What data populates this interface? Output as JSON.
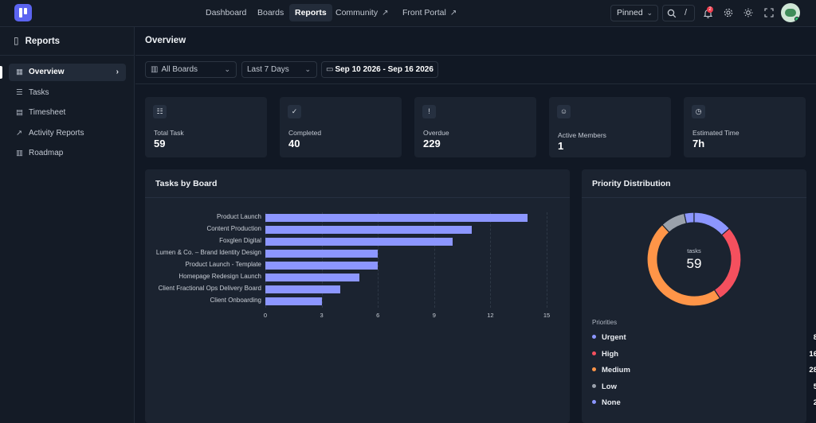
{
  "nav": {
    "items": [
      {
        "label": "Dashboard",
        "external": false,
        "active": false
      },
      {
        "label": "Boards",
        "external": false,
        "active": false
      },
      {
        "label": "Reports",
        "external": false,
        "active": true
      },
      {
        "label": "Community",
        "external": true,
        "active": false
      },
      {
        "label": "Front Portal",
        "external": true,
        "active": false
      }
    ],
    "pinned_label": "Pinned",
    "search_shortcut": "/",
    "notification_count": "2"
  },
  "sidebar": {
    "title": "Reports",
    "items": [
      {
        "label": "Overview",
        "icon": "grid-icon",
        "active": true
      },
      {
        "label": "Tasks",
        "icon": "list-check-icon",
        "active": false
      },
      {
        "label": "Timesheet",
        "icon": "timesheet-icon",
        "active": false
      },
      {
        "label": "Activity Reports",
        "icon": "chart-line-icon",
        "active": false
      },
      {
        "label": "Roadmap",
        "icon": "map-icon",
        "active": false
      }
    ]
  },
  "main": {
    "title": "Overview",
    "filters": {
      "boards": "All Boards",
      "range": "Last 7 Days",
      "date_from": "Sep 10 2026",
      "date_sep": "-",
      "date_to": "Sep 16 2026"
    },
    "stats": [
      {
        "label": "Total Task",
        "value": "59",
        "icon": "task-list-icon"
      },
      {
        "label": "Completed",
        "value": "40",
        "icon": "double-check-icon"
      },
      {
        "label": "Overdue",
        "value": "229",
        "icon": "alert-icon"
      },
      {
        "label": "Active Members",
        "value": "1",
        "icon": "members-icon"
      },
      {
        "label": "Estimated Time",
        "value": "7h",
        "icon": "clock-icon"
      }
    ]
  },
  "chart_data": [
    {
      "type": "bar",
      "orientation": "horizontal",
      "title": "Tasks by Board",
      "categories": [
        "Product Launch",
        "Content Production",
        "Foxglen Digital",
        "Lumen & Co. – Brand Identity Design",
        "Product Launch - Template",
        "Homepage Redesign Launch",
        "Client Fractional Ops Delivery Board",
        "Client Onboarding"
      ],
      "values": [
        14,
        11,
        10,
        6,
        6,
        5,
        4,
        3
      ],
      "xlim": [
        0,
        15
      ],
      "xticks": [
        0,
        3,
        6,
        9,
        12,
        15
      ],
      "grid": true,
      "color": "#8c96ff"
    },
    {
      "type": "pie",
      "title": "Priority Distribution",
      "center_label": "tasks",
      "center_value": "59",
      "legend_title": "Priorities",
      "slices": [
        {
          "label": "Urgent",
          "value": 8,
          "color": "#8c96ff"
        },
        {
          "label": "High",
          "value": 16,
          "color": "#f5505e"
        },
        {
          "label": "Medium",
          "value": 28,
          "color": "#ff9548"
        },
        {
          "label": "Low",
          "value": 5,
          "color": "#9aa1ab"
        },
        {
          "label": "None",
          "value": 2,
          "color": "#8c96ff"
        }
      ]
    }
  ]
}
